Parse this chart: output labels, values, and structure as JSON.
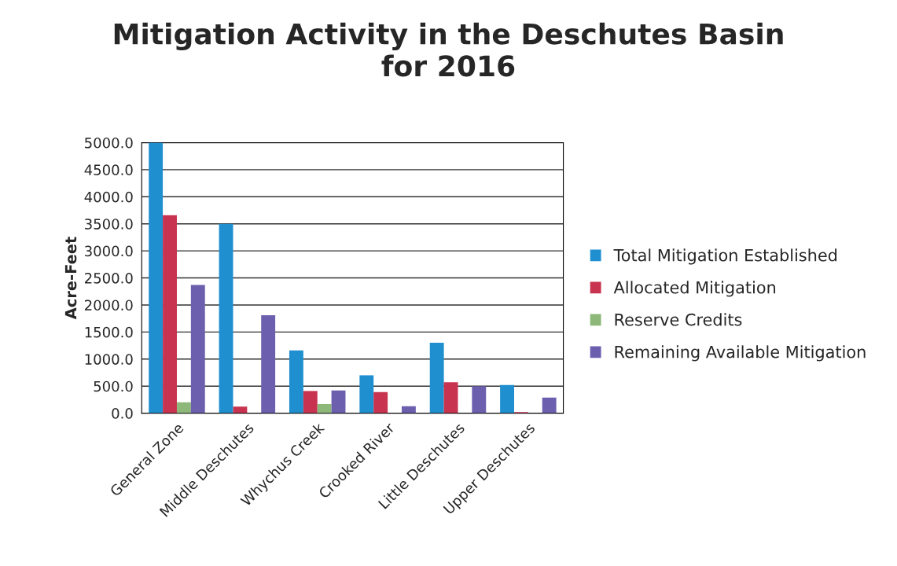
{
  "chart_data": {
    "type": "bar",
    "title": "Mitigation Activity in the Deschutes Basin\nfor 2016",
    "ylabel": "Acre-Feet",
    "categories": [
      "General Zone",
      "Middle Deschutes",
      "Whychus Creek",
      "Crooked River",
      "Little Deschutes",
      "Upper Deschutes"
    ],
    "series": [
      {
        "name": "Total Mitigation Established",
        "color": "#1f8fd0",
        "values": [
          5000,
          3500,
          1160,
          700,
          1300,
          520
        ]
      },
      {
        "name": "Allocated Mitigation",
        "color": "#c8334f",
        "values": [
          3660,
          120,
          410,
          390,
          570,
          20
        ]
      },
      {
        "name": "Reserve Credits",
        "color": "#8db87a",
        "values": [
          200,
          null,
          170,
          null,
          null,
          null
        ]
      },
      {
        "name": "Remaining Available Mitigation",
        "color": "#6c5fae",
        "values": [
          2370,
          1810,
          420,
          130,
          500,
          290
        ]
      }
    ],
    "ylim": [
      0,
      5000
    ],
    "yticks": [
      {
        "value": 0,
        "label": "0.0"
      },
      {
        "value": 500,
        "label": "500.0"
      },
      {
        "value": 1000,
        "label": "1000.0"
      },
      {
        "value": 1500,
        "label": "1500.0"
      },
      {
        "value": 2000,
        "label": "2000.0"
      },
      {
        "value": 2500,
        "label": "2500.0"
      },
      {
        "value": 3000,
        "label": "3000.0"
      },
      {
        "value": 3500,
        "label": "3500.0"
      },
      {
        "value": 4000,
        "label": "4000.0"
      },
      {
        "value": 4500,
        "label": "4500.0"
      },
      {
        "value": 5000,
        "label": "5000.0"
      }
    ],
    "grid": "y",
    "legend": "right"
  }
}
